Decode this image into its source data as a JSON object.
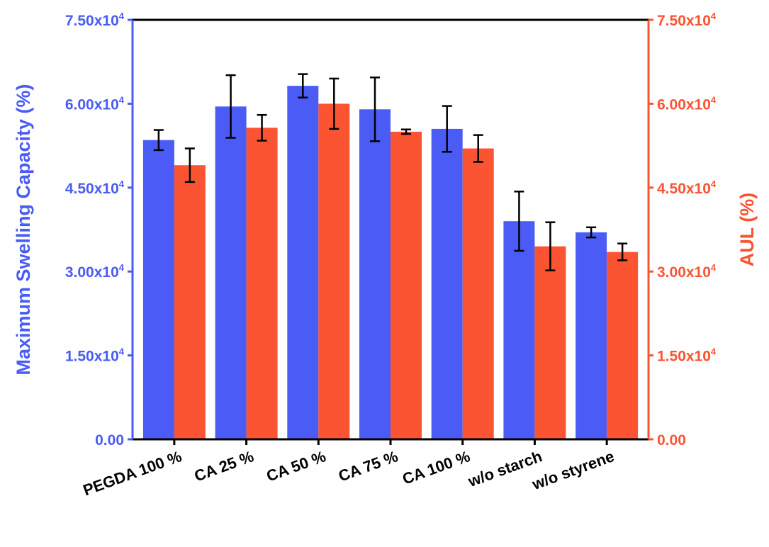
{
  "chart_data": {
    "type": "bar",
    "categories": [
      "PEGDA 100 %",
      "CA 25 %",
      "CA 50 %",
      "CA 75 %",
      "CA 100 %",
      "w/o starch",
      "w/o styrene"
    ],
    "series": [
      {
        "axis": "left",
        "values": [
          53500,
          59500,
          63200,
          59000,
          55500,
          39000,
          37000
        ],
        "errors": [
          1800,
          5600,
          2100,
          5700,
          4100,
          5300,
          900
        ]
      },
      {
        "axis": "right",
        "values": [
          49000,
          55700,
          60000,
          55000,
          52000,
          34500,
          33500
        ],
        "errors": [
          3000,
          2300,
          4500,
          400,
          2400,
          4300,
          1500
        ]
      }
    ],
    "ylabel_left": "Maximum Swelling Capacity (%)",
    "ylabel_right": "AUL (%)",
    "ylim": [
      0,
      75000
    ],
    "yticks": [
      {
        "value": 0,
        "mantissa": "0.00",
        "exp": ""
      },
      {
        "value": 15000,
        "mantissa": "1.50x10",
        "exp": "4"
      },
      {
        "value": 30000,
        "mantissa": "3.00x10",
        "exp": "4"
      },
      {
        "value": 45000,
        "mantissa": "4.50x10",
        "exp": "4"
      },
      {
        "value": 60000,
        "mantissa": "6.00x10",
        "exp": "4"
      },
      {
        "value": 75000,
        "mantissa": "7.50x10",
        "exp": "4"
      }
    ],
    "grid": false,
    "legend": "none",
    "colors": {
      "left": "#4a5cf5",
      "right": "#fb5433",
      "error": "#000000",
      "frame": "#000000"
    }
  }
}
